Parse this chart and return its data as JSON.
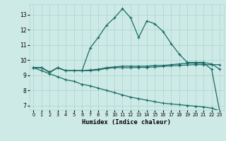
{
  "xlabel": "Humidex (Indice chaleur)",
  "bg_color": "#ceeae6",
  "line_color": "#1a6b65",
  "ylim": [
    6.7,
    13.7
  ],
  "xlim": [
    -0.5,
    23.5
  ],
  "yticks": [
    7,
    8,
    9,
    10,
    11,
    12,
    13
  ],
  "xticks": [
    0,
    1,
    2,
    3,
    4,
    5,
    6,
    7,
    8,
    9,
    10,
    11,
    12,
    13,
    14,
    15,
    16,
    17,
    18,
    19,
    20,
    21,
    22,
    23
  ],
  "line_main_x": [
    0,
    1,
    2,
    3,
    4,
    5,
    6,
    7,
    8,
    9,
    10,
    11,
    12,
    13,
    14,
    15,
    16,
    17,
    18,
    19,
    20,
    21,
    22,
    23
  ],
  "line_main_y": [
    9.5,
    9.5,
    9.2,
    9.5,
    9.3,
    9.3,
    9.3,
    10.8,
    11.5,
    12.3,
    12.8,
    13.4,
    12.8,
    11.5,
    12.6,
    12.4,
    11.9,
    11.1,
    10.4,
    9.85,
    9.85,
    9.85,
    9.75,
    9.4
  ],
  "line_diag_x": [
    0,
    1,
    2,
    3,
    4,
    5,
    6,
    7,
    8,
    9,
    10,
    11,
    12,
    13,
    14,
    15,
    16,
    17,
    18,
    19,
    20,
    21,
    22,
    23
  ],
  "line_diag_y": [
    9.5,
    9.3,
    9.1,
    8.9,
    8.7,
    8.6,
    8.4,
    8.3,
    8.15,
    8.0,
    7.85,
    7.7,
    7.55,
    7.45,
    7.35,
    7.25,
    7.15,
    7.1,
    7.05,
    7.0,
    6.95,
    6.9,
    6.82,
    6.65
  ],
  "line_flat1_x": [
    0,
    1,
    2,
    3,
    4,
    5,
    6,
    7,
    8,
    9,
    10,
    11,
    12,
    13,
    14,
    15,
    16,
    17,
    18,
    19,
    20,
    21,
    22,
    23
  ],
  "line_flat1_y": [
    9.5,
    9.5,
    9.2,
    9.5,
    9.3,
    9.3,
    9.3,
    9.35,
    9.4,
    9.5,
    9.55,
    9.6,
    9.6,
    9.6,
    9.6,
    9.65,
    9.65,
    9.7,
    9.75,
    9.8,
    9.8,
    9.8,
    9.4,
    6.6
  ],
  "line_flat2_x": [
    0,
    1,
    2,
    3,
    4,
    5,
    6,
    7,
    8,
    9,
    10,
    11,
    12,
    13,
    14,
    15,
    16,
    17,
    18,
    19,
    20,
    21,
    22,
    23
  ],
  "line_flat2_y": [
    9.5,
    9.5,
    9.2,
    9.5,
    9.3,
    9.3,
    9.3,
    9.3,
    9.35,
    9.45,
    9.5,
    9.5,
    9.5,
    9.52,
    9.52,
    9.55,
    9.58,
    9.62,
    9.65,
    9.68,
    9.7,
    9.7,
    9.7,
    9.7
  ],
  "grid_color": "#aad4ce"
}
